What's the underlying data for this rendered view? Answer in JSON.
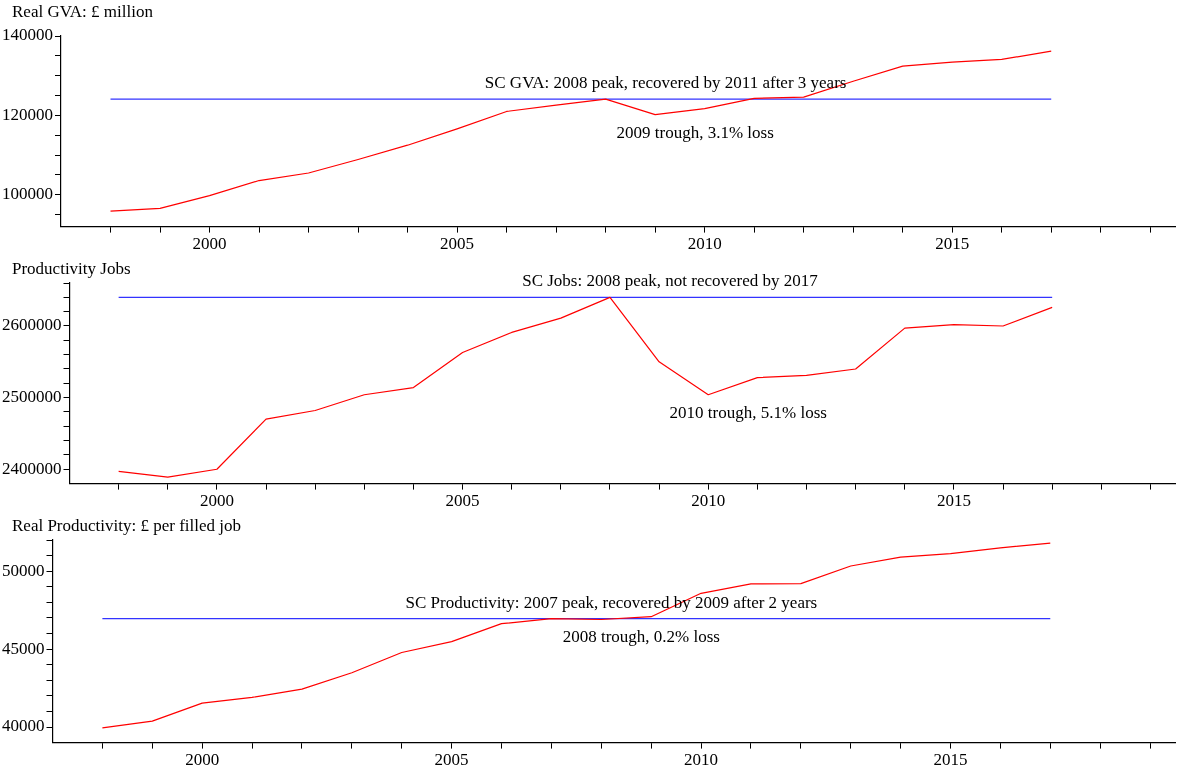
{
  "chart_data": [
    {
      "type": "line",
      "ylabel": "Real GVA: £ million",
      "x": [
        1998,
        1999,
        2000,
        2001,
        2002,
        2003,
        2004,
        2005,
        2006,
        2007,
        2008,
        2009,
        2010,
        2011,
        2012,
        2013,
        2014,
        2015,
        2016,
        2017
      ],
      "series": [
        {
          "color": "#ff0000",
          "values": [
            95900,
            96600,
            99800,
            103600,
            105500,
            108900,
            112500,
            116600,
            121000,
            122600,
            124100,
            120200,
            121700,
            124300,
            124600,
            128600,
            132400,
            133400,
            134100,
            136200
          ]
        }
      ],
      "xlim": [
        1997,
        2019.5
      ],
      "xticks": [
        {
          "value": 1998,
          "label": null
        },
        {
          "value": 1999,
          "label": null
        },
        2000,
        {
          "value": 2001,
          "label": null
        },
        {
          "value": 2002,
          "label": null
        },
        {
          "value": 2003,
          "label": null
        },
        {
          "value": 2004,
          "label": null
        },
        2005,
        {
          "value": 2006,
          "label": null
        },
        {
          "value": 2007,
          "label": null
        },
        {
          "value": 2008,
          "label": null
        },
        {
          "value": 2009,
          "label": null
        },
        2010,
        {
          "value": 2011,
          "label": null
        },
        {
          "value": 2012,
          "label": null
        },
        {
          "value": 2013,
          "label": null
        },
        {
          "value": 2014,
          "label": null
        },
        2015,
        {
          "value": 2016,
          "label": null
        },
        {
          "value": 2017,
          "label": null
        },
        {
          "value": 2018,
          "label": null
        },
        {
          "value": 2019,
          "label": null
        }
      ],
      "ylim": [
        92000,
        140000
      ],
      "yticks": [
        {
          "value": 95000,
          "label": null
        },
        100000,
        {
          "value": 105000,
          "label": null
        },
        {
          "value": 110000,
          "label": null
        },
        {
          "value": 115000,
          "label": null
        },
        120000,
        {
          "value": 125000,
          "label": null
        },
        {
          "value": 130000,
          "label": null
        },
        {
          "value": 135000,
          "label": null
        },
        140000
      ],
      "ref_lines": [
        {
          "axis": "y",
          "value": 124100,
          "color": "#3333ff"
        }
      ],
      "annotations": [
        {
          "text": "SC GVA: 2008 peak, recovered by 2011 after 3 years",
          "x": 2008,
          "y": 124100
        },
        {
          "text": "2009 trough, 3.1% loss",
          "x": 2009,
          "y": 120200
        }
      ],
      "grid": false,
      "legend": false
    },
    {
      "type": "line",
      "ylabel": "Productivity Jobs",
      "x": [
        1998,
        1999,
        2000,
        2001,
        2002,
        2003,
        2004,
        2005,
        2006,
        2007,
        2008,
        2009,
        2010,
        2011,
        2012,
        2013,
        2014,
        2015,
        2016,
        2017
      ],
      "series": [
        {
          "color": "#ff0000",
          "values": [
            2397000,
            2389000,
            2400000,
            2470000,
            2482000,
            2504000,
            2514000,
            2563000,
            2591000,
            2611000,
            2640000,
            2550000,
            2504000,
            2528000,
            2531000,
            2540000,
            2597000,
            2602000,
            2600000,
            2626000
          ]
        }
      ],
      "xlim": [
        1997,
        2019.5
      ],
      "xticks": [
        {
          "value": 1998,
          "label": null
        },
        {
          "value": 1999,
          "label": null
        },
        2000,
        {
          "value": 2001,
          "label": null
        },
        {
          "value": 2002,
          "label": null
        },
        {
          "value": 2003,
          "label": null
        },
        {
          "value": 2004,
          "label": null
        },
        2005,
        {
          "value": 2006,
          "label": null
        },
        {
          "value": 2007,
          "label": null
        },
        {
          "value": 2008,
          "label": null
        },
        {
          "value": 2009,
          "label": null
        },
        2010,
        {
          "value": 2011,
          "label": null
        },
        {
          "value": 2012,
          "label": null
        },
        {
          "value": 2013,
          "label": null
        },
        {
          "value": 2014,
          "label": null
        },
        2015,
        {
          "value": 2016,
          "label": null
        },
        {
          "value": 2017,
          "label": null
        },
        {
          "value": 2018,
          "label": null
        },
        {
          "value": 2019,
          "label": null
        }
      ],
      "ylim": [
        2380000,
        2660000
      ],
      "yticks": [
        2400000,
        {
          "value": 2420000,
          "label": null
        },
        {
          "value": 2440000,
          "label": null
        },
        {
          "value": 2460000,
          "label": null
        },
        {
          "value": 2480000,
          "label": null
        },
        2500000,
        {
          "value": 2520000,
          "label": null
        },
        {
          "value": 2540000,
          "label": null
        },
        {
          "value": 2560000,
          "label": null
        },
        {
          "value": 2580000,
          "label": null
        },
        2600000,
        {
          "value": 2620000,
          "label": null
        },
        {
          "value": 2640000,
          "label": null
        },
        {
          "value": 2660000,
          "label": null
        }
      ],
      "ref_lines": [
        {
          "axis": "y",
          "value": 2640000,
          "color": "#3333ff"
        }
      ],
      "annotations": [
        {
          "text": "SC Jobs: 2008 peak, not recovered by 2017",
          "x": 2008,
          "y": 2640000
        },
        {
          "text": "2010 trough, 5.1% loss",
          "x": 2010,
          "y": 2504000
        }
      ],
      "grid": false,
      "legend": false
    },
    {
      "type": "line",
      "ylabel": "Real Productivity: £ per filled job",
      "x": [
        1998,
        1999,
        2000,
        2001,
        2002,
        2003,
        2004,
        2005,
        2006,
        2007,
        2008,
        2009,
        2010,
        2011,
        2012,
        2013,
        2014,
        2015,
        2016,
        2017
      ],
      "series": [
        {
          "color": "#ff0000",
          "values": [
            39950,
            40380,
            41530,
            41900,
            42430,
            43480,
            44780,
            45480,
            46630,
            46950,
            46900,
            47080,
            48580,
            49180,
            49200,
            50330,
            50900,
            51130,
            51500,
            51800
          ]
        }
      ],
      "xlim": [
        1997,
        2019.5
      ],
      "xticks": [
        {
          "value": 1998,
          "label": null
        },
        {
          "value": 1999,
          "label": null
        },
        2000,
        {
          "value": 2001,
          "label": null
        },
        {
          "value": 2002,
          "label": null
        },
        {
          "value": 2003,
          "label": null
        },
        {
          "value": 2004,
          "label": null
        },
        2005,
        {
          "value": 2006,
          "label": null
        },
        {
          "value": 2007,
          "label": null
        },
        {
          "value": 2008,
          "label": null
        },
        {
          "value": 2009,
          "label": null
        },
        2010,
        {
          "value": 2011,
          "label": null
        },
        {
          "value": 2012,
          "label": null
        },
        {
          "value": 2013,
          "label": null
        },
        {
          "value": 2014,
          "label": null
        },
        2015,
        {
          "value": 2016,
          "label": null
        },
        {
          "value": 2017,
          "label": null
        },
        {
          "value": 2018,
          "label": null
        },
        {
          "value": 2019,
          "label": null
        }
      ],
      "ylim": [
        39000,
        52000
      ],
      "yticks": [
        40000,
        {
          "value": 41000,
          "label": null
        },
        {
          "value": 42000,
          "label": null
        },
        {
          "value": 43000,
          "label": null
        },
        {
          "value": 44000,
          "label": null
        },
        45000,
        {
          "value": 46000,
          "label": null
        },
        {
          "value": 47000,
          "label": null
        },
        {
          "value": 48000,
          "label": null
        },
        {
          "value": 49000,
          "label": null
        },
        50000,
        {
          "value": 51000,
          "label": null
        },
        {
          "value": 52000,
          "label": null
        }
      ],
      "ref_lines": [
        {
          "axis": "y",
          "value": 46950,
          "color": "#3333ff"
        }
      ],
      "annotations": [
        {
          "text": "SC Productivity: 2007 peak, recovered by 2009 after 2 years",
          "x": 2007,
          "y": 46950
        },
        {
          "text": "2008 trough, 0.2% loss",
          "x": 2008,
          "y": 46900
        }
      ],
      "grid": false,
      "legend": false
    }
  ]
}
